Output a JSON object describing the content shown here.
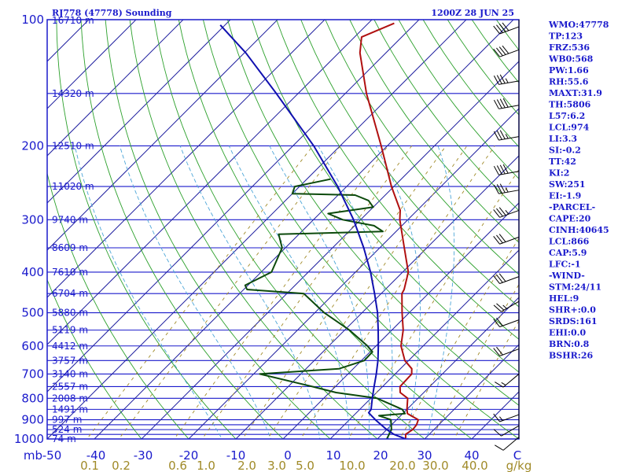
{
  "header": {
    "station": "RJ778 (47778) Sounding",
    "time": "1200Z 28 JUN 25"
  },
  "colors": {
    "frame": "#1a1acc",
    "isobar": "#1a1acc",
    "isotherm": "#2020a0",
    "dry_adiabat": "#2ca02c",
    "moist_adiabat": "#4da6d8",
    "mixing_ratio": "#a08a28",
    "temperature": "#b01010",
    "dewpoint": "#0c4a0c",
    "parcel": "#1010b0",
    "barbs": "#000000"
  },
  "axes": {
    "pressure_labels": [
      "100",
      "200",
      "300",
      "400",
      "500",
      "600",
      "700",
      "800",
      "900",
      "1000"
    ],
    "temperature_labels": [
      "mb",
      "-50",
      "-40",
      "-30",
      "-20",
      "-10",
      "0",
      "10",
      "20",
      "30",
      "40",
      "C"
    ],
    "mixing_ratio_labels": [
      "0.1",
      "0.2",
      "0.6",
      "1.0",
      "2.0",
      "3.0",
      "5.0",
      "10.0",
      "20.0",
      "30.0",
      "40.0",
      "g/kg"
    ],
    "height_labels": [
      "16710 m",
      "14320 m",
      "12510 m",
      "11020 m",
      "9740 m",
      "8609 m",
      "7610 m",
      "6704 m",
      "5880 m",
      "5119 m",
      "4412 m",
      "3757 m",
      "3140 m",
      "2557 m",
      "2008 m",
      "1491 m",
      "997 m",
      "524 m",
      "74 m"
    ]
  },
  "indices": [
    "WMO:47778",
    "TP:123",
    "FRZ:536",
    "WB0:568",
    "PW:1.66",
    "RH:55.6",
    "MAXT:31.9",
    "TH:5806",
    "L57:6.2",
    "LCL:974",
    "LI:3.3",
    "SI:-0.2",
    "TT:42",
    "KI:2",
    "SW:251",
    "EI:-1.9",
    "-PARCEL-",
    "CAPE:20",
    "CINH:40645",
    "LCL:866",
    "CAP:5.9",
    "LFC:-1",
    "-WIND-",
    "STM:24/11",
    "HEL:9",
    "SHR+:0.0",
    "SRDS:161",
    "EHI:0.0",
    "BRN:0.8",
    "BSHR:26"
  ],
  "chart_data": {
    "type": "line",
    "title": "RJ778 (47778) Sounding",
    "subtitle": "1200Z 28 JUN 25",
    "xlabel": "C",
    "ylabel": "mb",
    "x_tick_labels": [
      "-50",
      "-40",
      "-30",
      "-20",
      "-10",
      "0",
      "10",
      "20",
      "30",
      "40"
    ],
    "y_tick_labels": [
      "100",
      "200",
      "300",
      "400",
      "500",
      "600",
      "700",
      "800",
      "900",
      "1000"
    ],
    "y_scale": "log (inverted)",
    "ylim": [
      1000,
      100
    ],
    "isobars_mb": [
      1000,
      975,
      950,
      925,
      900,
      850,
      800,
      750,
      700,
      650,
      600,
      550,
      500,
      450,
      400,
      350,
      300,
      250,
      200,
      150,
      100
    ],
    "skew": "45 degrees",
    "mixing_ratio_lines_gkg": [
      0.1,
      0.2,
      0.6,
      1.0,
      2.0,
      3.0,
      5.0,
      10.0,
      20.0,
      30.0,
      40.0
    ],
    "grid": true,
    "legend": "none",
    "height_levels": [
      {
        "p": 1000,
        "h": "74 m"
      },
      {
        "p": 950,
        "h": "524 m"
      },
      {
        "p": 900,
        "h": "997 m"
      },
      {
        "p": 850,
        "h": "1491 m"
      },
      {
        "p": 800,
        "h": "2008 m"
      },
      {
        "p": 750,
        "h": "2557 m"
      },
      {
        "p": 700,
        "h": "3140 m"
      },
      {
        "p": 650,
        "h": "3757 m"
      },
      {
        "p": 600,
        "h": "4412 m"
      },
      {
        "p": 550,
        "h": "5119 m"
      },
      {
        "p": 500,
        "h": "5880 m"
      },
      {
        "p": 450,
        "h": "6704 m"
      },
      {
        "p": 400,
        "h": "7610 m"
      },
      {
        "p": 350,
        "h": "8609 m"
      },
      {
        "p": 300,
        "h": "9740 m"
      },
      {
        "p": 250,
        "h": "11020 m"
      },
      {
        "p": 200,
        "h": "12510 m"
      },
      {
        "p": 150,
        "h": "14320 m"
      },
      {
        "p": 100,
        "h": "16710 m"
      }
    ],
    "series": [
      {
        "points": [
          {
            "p": 1000,
            "t": 26
          },
          {
            "p": 975,
            "t": 25
          },
          {
            "p": 950,
            "t": 25.5
          },
          {
            "p": 925,
            "t": 25.3
          },
          {
            "p": 900,
            "t": 24.6
          },
          {
            "p": 870,
            "t": 21
          },
          {
            "p": 850,
            "t": 20
          },
          {
            "p": 800,
            "t": 17.8
          },
          {
            "p": 775,
            "t": 15
          },
          {
            "p": 750,
            "t": 13.7
          },
          {
            "p": 700,
            "t": 13.5
          },
          {
            "p": 680,
            "t": 12.4
          },
          {
            "p": 650,
            "t": 9.2
          },
          {
            "p": 600,
            "t": 5.3
          },
          {
            "p": 550,
            "t": 2.4
          },
          {
            "p": 500,
            "t": -1.5
          },
          {
            "p": 450,
            "t": -5.6
          },
          {
            "p": 440,
            "t": -6
          },
          {
            "p": 400,
            "t": -8.8
          },
          {
            "p": 350,
            "t": -14.8
          },
          {
            "p": 300,
            "t": -21.7
          },
          {
            "p": 285,
            "t": -23.6
          },
          {
            "p": 250,
            "t": -30.5
          },
          {
            "p": 200,
            "t": -41.3
          },
          {
            "p": 150,
            "t": -55.5
          },
          {
            "p": 120,
            "t": -65.5
          },
          {
            "p": 110,
            "t": -68.5
          },
          {
            "p": 102,
            "t": -64.5
          }
        ]
      },
      {
        "points": [
          {
            "p": 1000,
            "t": 22
          },
          {
            "p": 975,
            "t": 21.5
          },
          {
            "p": 950,
            "t": 21
          },
          {
            "p": 900,
            "t": 18.8
          },
          {
            "p": 880,
            "t": 15.4
          },
          {
            "p": 870,
            "t": 20.5
          },
          {
            "p": 850,
            "t": 19
          },
          {
            "p": 800,
            "t": 11.3
          },
          {
            "p": 775,
            "t": 1.4
          },
          {
            "p": 750,
            "t": -4.9
          },
          {
            "p": 700,
            "t": -18.7
          },
          {
            "p": 680,
            "t": -3
          },
          {
            "p": 650,
            "t": 0.6
          },
          {
            "p": 620,
            "t": 0.5
          },
          {
            "p": 600,
            "t": -1.8
          },
          {
            "p": 550,
            "t": -9
          },
          {
            "p": 500,
            "t": -18
          },
          {
            "p": 450,
            "t": -26.4
          },
          {
            "p": 440,
            "t": -39.3
          },
          {
            "p": 430,
            "t": -40.6
          },
          {
            "p": 400,
            "t": -37.8
          },
          {
            "p": 350,
            "t": -40.7
          },
          {
            "p": 325,
            "t": -44.3
          },
          {
            "p": 320,
            "t": -22.8
          },
          {
            "p": 310,
            "t": -25.9
          },
          {
            "p": 300,
            "t": -33.8
          },
          {
            "p": 290,
            "t": -38.2
          },
          {
            "p": 280,
            "t": -30
          },
          {
            "p": 270,
            "t": -32.4
          },
          {
            "p": 262,
            "t": -36.4
          },
          {
            "p": 260,
            "t": -50
          },
          {
            "p": 250,
            "t": -51
          },
          {
            "p": 240,
            "t": -45
          }
        ]
      },
      {
        "points": [
          {
            "p": 1000,
            "t": 26
          },
          {
            "p": 975,
            "t": 22.5
          },
          {
            "p": 950,
            "t": 20
          },
          {
            "p": 900,
            "t": 15.5
          },
          {
            "p": 866,
            "t": 12.6
          },
          {
            "p": 850,
            "t": 12.4
          },
          {
            "p": 800,
            "t": 10.3
          },
          {
            "p": 750,
            "t": 8.2
          },
          {
            "p": 700,
            "t": 6
          },
          {
            "p": 650,
            "t": 3.5
          },
          {
            "p": 600,
            "t": 0.5
          },
          {
            "p": 550,
            "t": -2.9
          },
          {
            "p": 500,
            "t": -6.7
          },
          {
            "p": 450,
            "t": -11.4
          },
          {
            "p": 400,
            "t": -16.8
          },
          {
            "p": 350,
            "t": -23.4
          },
          {
            "p": 300,
            "t": -31.5
          },
          {
            "p": 250,
            "t": -41.9
          },
          {
            "p": 200,
            "t": -55.6
          },
          {
            "p": 150,
            "t": -74.6
          },
          {
            "p": 120,
            "t": -89.7
          },
          {
            "p": 103,
            "t": -101
          }
        ]
      }
    ],
    "wind_barbs": [
      {
        "p": 990,
        "dir": 230,
        "kt": 10
      },
      {
        "p": 930,
        "dir": 240,
        "kt": 10
      },
      {
        "p": 875,
        "dir": 250,
        "kt": 15
      },
      {
        "p": 700,
        "dir": 230,
        "kt": 15
      },
      {
        "p": 610,
        "dir": 250,
        "kt": 20
      },
      {
        "p": 520,
        "dir": 250,
        "kt": 20
      },
      {
        "p": 470,
        "dir": 240,
        "kt": 25
      },
      {
        "p": 410,
        "dir": 250,
        "kt": 30
      },
      {
        "p": 330,
        "dir": 250,
        "kt": 30
      },
      {
        "p": 285,
        "dir": 250,
        "kt": 35
      },
      {
        "p": 255,
        "dir": 260,
        "kt": 35
      },
      {
        "p": 230,
        "dir": 260,
        "kt": 40
      },
      {
        "p": 190,
        "dir": 260,
        "kt": 35
      },
      {
        "p": 160,
        "dir": 260,
        "kt": 40
      },
      {
        "p": 140,
        "dir": 260,
        "kt": 35
      },
      {
        "p": 118,
        "dir": 250,
        "kt": 40
      },
      {
        "p": 104,
        "dir": 250,
        "kt": 40
      }
    ]
  }
}
